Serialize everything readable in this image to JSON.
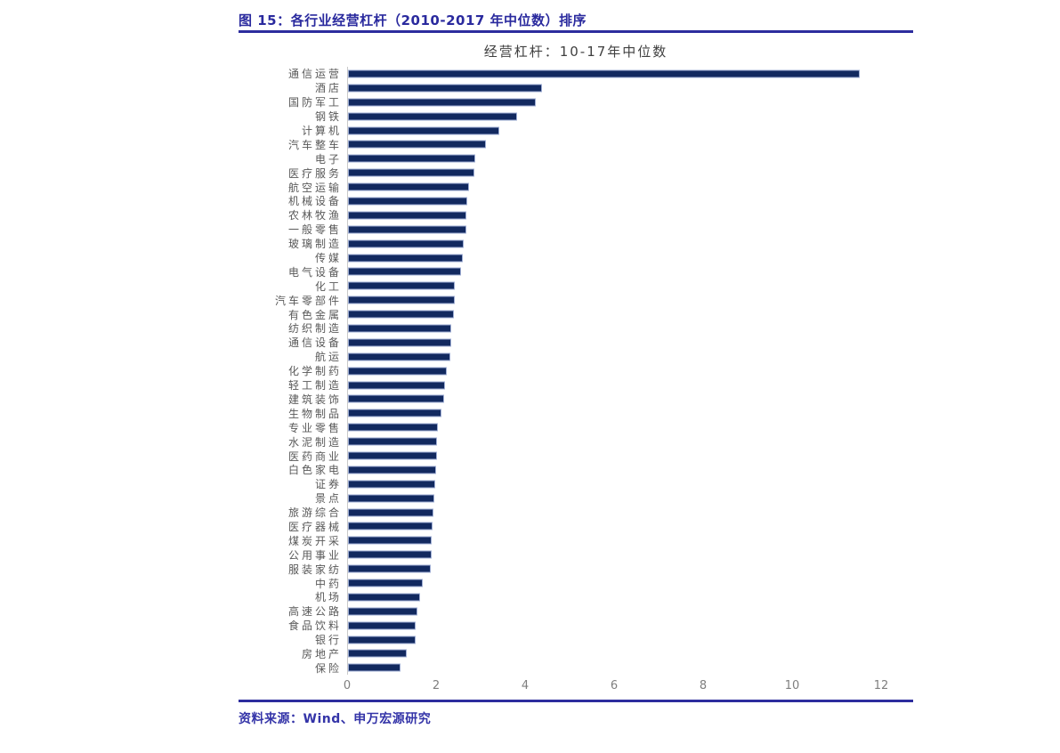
{
  "figure": {
    "caption": "图 15：各行业经营杠杆（2010-2017 年中位数）排序",
    "source": "资料来源：Wind、申万宏源研究"
  },
  "colors": {
    "caption_blue": "#2a2a9e",
    "divider_blue": "#2d2d9e",
    "bar_fill": "#12295f",
    "bar_border": "#9dacd3",
    "label_gray": "#595959",
    "tick_gray": "#7f7f7f"
  },
  "chart_data": {
    "type": "bar",
    "orientation": "horizontal",
    "title": "经营杠杆：10-17年中位数",
    "xlabel": "",
    "ylabel": "",
    "xlim": [
      0,
      12
    ],
    "xticks": [
      0,
      2,
      4,
      6,
      8,
      10,
      12
    ],
    "grid": false,
    "legend": "none",
    "categories": [
      "通信运营",
      "酒店",
      "国防军工",
      "钢铁",
      "计算机",
      "汽车整车",
      "电子",
      "医疗服务",
      "航空运输",
      "机械设备",
      "农林牧渔",
      "一般零售",
      "玻璃制造",
      "传媒",
      "电气设备",
      "化工",
      "汽车零部件",
      "有色金属",
      "纺织制造",
      "通信设备",
      "航运",
      "化学制药",
      "轻工制造",
      "建筑装饰",
      "生物制品",
      "专业零售",
      "水泥制造",
      "医药商业",
      "白色家电",
      "证券",
      "景点",
      "旅游综合",
      "医疗器械",
      "煤炭开采",
      "公用事业",
      "服装家纺",
      "中药",
      "机场",
      "高速公路",
      "食品饮料",
      "银行",
      "房地产",
      "保险"
    ],
    "values": [
      11.5,
      4.35,
      4.22,
      3.8,
      3.4,
      3.1,
      2.85,
      2.83,
      2.72,
      2.67,
      2.66,
      2.65,
      2.6,
      2.58,
      2.53,
      2.4,
      2.39,
      2.38,
      2.32,
      2.31,
      2.3,
      2.22,
      2.18,
      2.16,
      2.09,
      2.01,
      2.0,
      1.99,
      1.97,
      1.96,
      1.93,
      1.91,
      1.89,
      1.88,
      1.87,
      1.86,
      1.67,
      1.62,
      1.56,
      1.52,
      1.51,
      1.32,
      1.18
    ]
  }
}
